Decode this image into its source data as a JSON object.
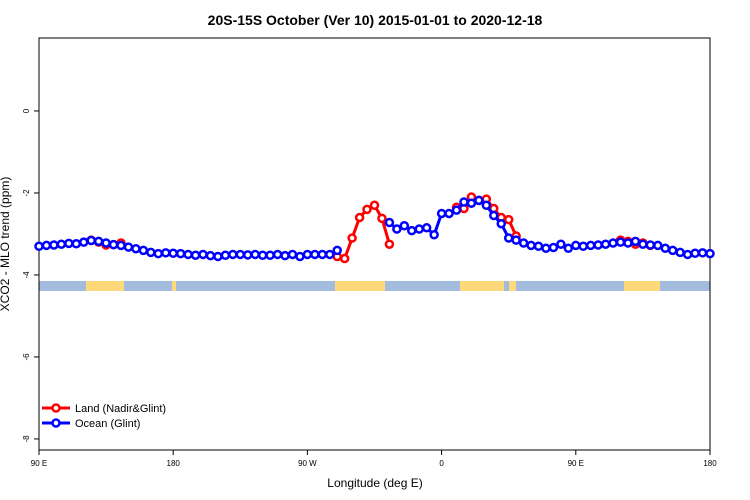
{
  "chart_data": {
    "type": "line",
    "title": "20S-15S October (Ver 10)   2015-01-01 to 2020-12-18",
    "xlabel": "Longitude (deg E)",
    "ylabel": "XCO2 - MLO trend (ppm)",
    "x": [
      90,
      95,
      100,
      105,
      110,
      115,
      120,
      125,
      130,
      135,
      140,
      145,
      150,
      155,
      160,
      165,
      170,
      175,
      180,
      185,
      190,
      195,
      200,
      205,
      210,
      215,
      220,
      225,
      230,
      235,
      240,
      245,
      250,
      255,
      260,
      265,
      270,
      275,
      280,
      285,
      290,
      295,
      300,
      305,
      310,
      315,
      320,
      325,
      330,
      335,
      340,
      345,
      350,
      355,
      360,
      365,
      370,
      375,
      380,
      385,
      390,
      395,
      400,
      405,
      410,
      415,
      420,
      425,
      430,
      435,
      440,
      445,
      450,
      455,
      460,
      465,
      470,
      475,
      480,
      485,
      490,
      495,
      500,
      505,
      510,
      515,
      520,
      525,
      530,
      535,
      540
    ],
    "xlim": [
      90,
      540
    ],
    "xticks": [
      {
        "value": 90,
        "label": "90 E"
      },
      180,
      {
        "value": 270,
        "label": "90 W"
      },
      {
        "value": 360,
        "label": "0"
      },
      {
        "value": 450,
        "label": "90 E"
      },
      {
        "value": 540,
        "label": "180"
      }
    ],
    "ylim": [
      -8.27,
      1.78
    ],
    "yticks": [
      -8,
      -6,
      -4,
      -2,
      0
    ],
    "legend": "bottom-left",
    "series": [
      {
        "name": "Land (Nadir&Glint)",
        "color": "#ff0000",
        "values": [
          null,
          null,
          null,
          null,
          null,
          null,
          null,
          -3.15,
          -3.2,
          -3.27,
          -3.26,
          -3.22,
          null,
          null,
          null,
          null,
          null,
          null,
          null,
          null,
          null,
          null,
          null,
          null,
          null,
          null,
          null,
          null,
          null,
          null,
          null,
          null,
          null,
          null,
          null,
          null,
          null,
          null,
          null,
          null,
          -3.55,
          -3.6,
          -3.1,
          -2.6,
          -2.4,
          -2.3,
          -2.62,
          -3.25,
          null,
          null,
          null,
          null,
          null,
          null,
          null,
          null,
          -2.35,
          -2.38,
          -2.1,
          -2.18,
          -2.15,
          -2.38,
          -2.6,
          -2.65,
          -3.05,
          null,
          null,
          null,
          null,
          null,
          null,
          null,
          null,
          null,
          null,
          null,
          null,
          null,
          -3.15,
          -3.18,
          -3.25,
          -3.22,
          -3.28,
          null,
          null,
          null,
          null,
          null,
          null,
          null,
          null
        ]
      },
      {
        "name": "Ocean (Glint)",
        "color": "#0000ff",
        "values": [
          -3.3,
          -3.28,
          -3.27,
          -3.25,
          -3.23,
          -3.24,
          -3.2,
          -3.16,
          -3.18,
          -3.22,
          -3.26,
          -3.28,
          -3.32,
          -3.36,
          -3.4,
          -3.45,
          -3.48,
          -3.46,
          -3.47,
          -3.48,
          -3.5,
          -3.52,
          -3.5,
          -3.53,
          -3.55,
          -3.52,
          -3.5,
          -3.5,
          -3.51,
          -3.5,
          -3.52,
          -3.52,
          -3.5,
          -3.53,
          -3.5,
          -3.55,
          -3.5,
          -3.5,
          -3.5,
          -3.5,
          -3.4,
          null,
          null,
          null,
          null,
          null,
          null,
          -2.72,
          -2.88,
          -2.8,
          -2.92,
          -2.88,
          -2.85,
          -3.02,
          -2.5,
          -2.5,
          -2.42,
          -2.22,
          -2.25,
          -2.18,
          -2.3,
          -2.55,
          -2.75,
          -3.1,
          -3.15,
          -3.22,
          -3.28,
          -3.3,
          -3.35,
          -3.33,
          -3.25,
          -3.35,
          -3.28,
          -3.3,
          -3.28,
          -3.27,
          -3.25,
          -3.22,
          -3.2,
          -3.22,
          -3.18,
          -3.25,
          -3.27,
          -3.28,
          -3.35,
          -3.4,
          -3.45,
          -3.5,
          -3.47,
          -3.46,
          -3.48
        ]
      }
    ]
  }
}
